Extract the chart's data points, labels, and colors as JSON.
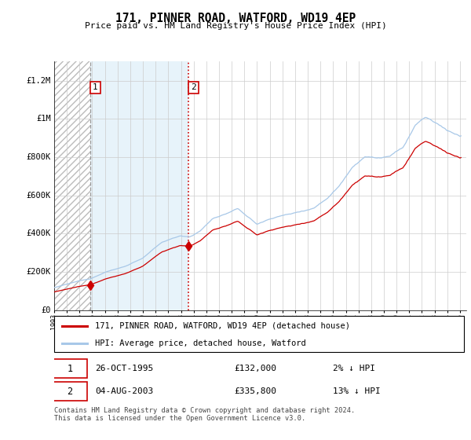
{
  "title": "171, PINNER ROAD, WATFORD, WD19 4EP",
  "subtitle": "Price paid vs. HM Land Registry's House Price Index (HPI)",
  "sale1_date": "1995-10-26",
  "sale1_price": 132000,
  "sale2_date": "2003-08-04",
  "sale2_price": 335800,
  "legend_property": "171, PINNER ROAD, WATFORD, WD19 4EP (detached house)",
  "legend_hpi": "HPI: Average price, detached house, Watford",
  "footer": "Contains HM Land Registry data © Crown copyright and database right 2024.\nThis data is licensed under the Open Government Licence v3.0.",
  "hpi_color": "#a8c8e8",
  "property_color": "#cc0000",
  "shade_color": "#ddeef8",
  "grid_color": "#cccccc",
  "ylim": [
    0,
    1300000
  ],
  "yticks": [
    0,
    200000,
    400000,
    600000,
    800000,
    1000000,
    1200000
  ],
  "ytick_labels": [
    "£0",
    "£200K",
    "£400K",
    "£600K",
    "£800K",
    "£1M",
    "£1.2M"
  ],
  "hpi_anchors_x": [
    1993.0,
    1994.0,
    1995.0,
    1995.83,
    1997.0,
    1998.5,
    2000.0,
    2001.5,
    2003.0,
    2003.67,
    2004.5,
    2005.5,
    2007.5,
    2009.0,
    2010.5,
    2012.0,
    2013.5,
    2014.5,
    2015.5,
    2016.5,
    2017.5,
    2018.5,
    2019.5,
    2020.5,
    2021.5,
    2022.3,
    2023.0,
    2024.0,
    2025.0
  ],
  "hpi_anchors_y": [
    118000,
    135000,
    152000,
    162000,
    200000,
    228000,
    275000,
    355000,
    390000,
    385000,
    415000,
    480000,
    530000,
    450000,
    490000,
    510000,
    540000,
    590000,
    660000,
    760000,
    820000,
    810000,
    820000,
    860000,
    980000,
    1020000,
    990000,
    950000,
    920000
  ],
  "sale1_year": 1995.833,
  "sale2_year": 2003.583
}
